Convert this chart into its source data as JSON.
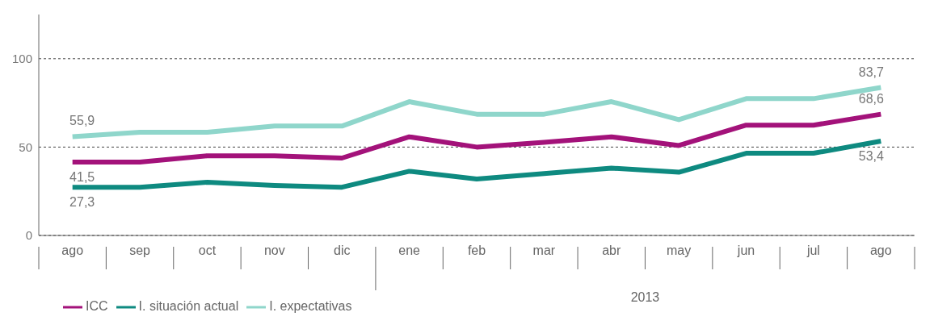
{
  "chart_data": {
    "type": "line",
    "categories": [
      "ago",
      "sep",
      "oct",
      "nov",
      "dic",
      "ene",
      "feb",
      "mar",
      "abr",
      "may",
      "jun",
      "jul",
      "ago"
    ],
    "series": [
      {
        "name": "ICC",
        "color": "#a3127a",
        "values": [
          41.5,
          41.5,
          45.1,
          45.1,
          43.8,
          55.8,
          50,
          52.7,
          55.8,
          50.9,
          62.4,
          62.4,
          68.6
        ],
        "value_labels": [
          "41,5",
          null,
          null,
          null,
          null,
          null,
          null,
          null,
          null,
          null,
          null,
          null,
          "68,6"
        ]
      },
      {
        "name": "I. situación actual",
        "color": "#0e8a80",
        "values": [
          27.3,
          27.3,
          30.1,
          28.3,
          27.3,
          36.3,
          31.9,
          35,
          38.1,
          35.8,
          46.5,
          46.5,
          53.4
        ],
        "value_labels": [
          "27,3",
          null,
          null,
          null,
          null,
          null,
          null,
          null,
          null,
          null,
          null,
          null,
          "53,4"
        ]
      },
      {
        "name": "I. expectativas",
        "color": "#8fd6cb",
        "values": [
          55.9,
          58.4,
          58.4,
          61.9,
          61.9,
          75.7,
          68.6,
          68.6,
          75.7,
          65.5,
          77.4,
          77.4,
          83.7
        ],
        "value_labels": [
          "55,9",
          null,
          null,
          null,
          null,
          null,
          null,
          null,
          null,
          null,
          null,
          null,
          "83,7"
        ]
      }
    ],
    "ylim": [
      0,
      125
    ],
    "yticks": [
      0,
      50,
      100
    ],
    "grid": "y",
    "legend": "bottom left",
    "line_style": "solid",
    "marker": "none",
    "annotations": [
      "2013"
    ]
  }
}
